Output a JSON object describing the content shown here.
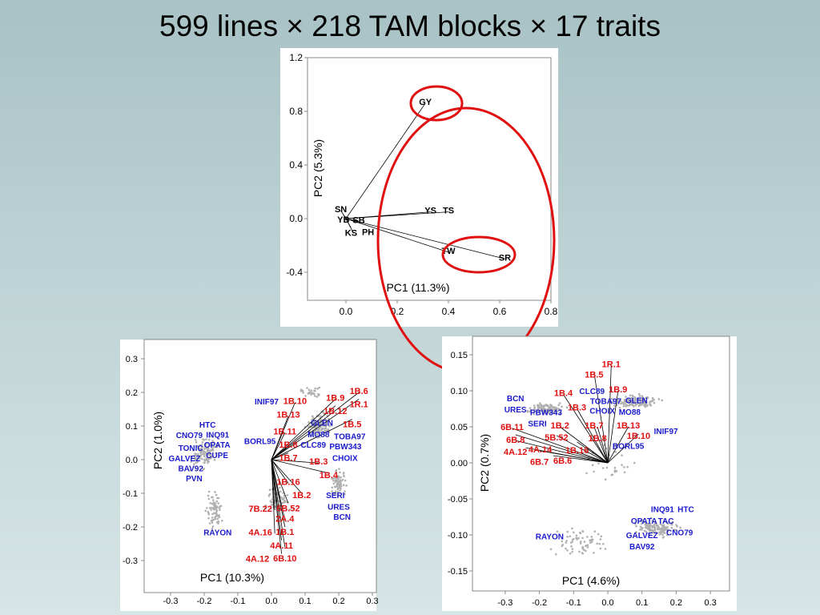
{
  "title": "599 lines × 218 TAM blocks × 17 traits",
  "colors": {
    "trait": "#e01010",
    "cultivar": "#1a1acc",
    "highlight": "#e01010",
    "points": "#b0b0b0",
    "vector": "#000000"
  },
  "chart_data": [
    {
      "type": "scatter",
      "subtype": "biplot",
      "xlabel": "PC1 (11.3%)",
      "ylabel": "PC2 (5.3%)",
      "xlim": [
        -0.15,
        0.8
      ],
      "ylim": [
        -0.5,
        1.2
      ],
      "xticks": [
        "0.0",
        "0.2",
        "0.4",
        "0.6",
        "0.8"
      ],
      "xtick_values": [
        0,
        0.2,
        0.4,
        0.6,
        0.8
      ],
      "yticks": [
        "1.2",
        "0.8",
        "0.4",
        "0.0",
        "-0.4"
      ],
      "ytick_values": [
        1.2,
        0.8,
        0.4,
        0,
        -0.4
      ],
      "traits": [
        {
          "label": "GY",
          "x": 0.31,
          "y": 0.86
        },
        {
          "label": "YS",
          "x": 0.33,
          "y": 0.05
        },
        {
          "label": "TS",
          "x": 0.4,
          "y": 0.05
        },
        {
          "label": "TW",
          "x": 0.4,
          "y": -0.25
        },
        {
          "label": "SR",
          "x": 0.62,
          "y": -0.3
        },
        {
          "label": "SN",
          "x": -0.02,
          "y": 0.06
        },
        {
          "label": "YB",
          "x": -0.01,
          "y": 0.03
        },
        {
          "label": "SB",
          "x": 0.05,
          "y": -0.02
        },
        {
          "label": "KS",
          "x": 0.02,
          "y": -0.07
        },
        {
          "label": "PH",
          "x": 0.03,
          "y": -0.11
        }
      ],
      "highlights": [
        "GY",
        "TW-SR",
        "all-correlated-traits"
      ]
    },
    {
      "type": "scatter",
      "subtype": "biplot",
      "xlabel": "PC1 (10.3%)",
      "ylabel": "PC2 (1.0%)",
      "xlim": [
        -0.37,
        0.33
      ],
      "ylim": [
        -0.39,
        0.34
      ],
      "xticks": [
        "-0.3",
        "-0.2",
        "-0.1",
        "0.0",
        "0.1",
        "0.2",
        "0.3"
      ],
      "xtick_values": [
        -0.3,
        -0.2,
        -0.1,
        0,
        0.1,
        0.2,
        0.3
      ],
      "yticks": [
        "0.3",
        "0.2",
        "0.1",
        "0.0",
        "-0.1",
        "-0.2",
        "-0.3"
      ],
      "ytick_values": [
        0.3,
        0.2,
        0.1,
        0,
        -0.1,
        -0.2,
        -0.3
      ],
      "traits": [
        {
          "label": "1B.6",
          "x": 0.26,
          "y": 0.2
        },
        {
          "label": "1R.1",
          "x": 0.26,
          "y": 0.18
        },
        {
          "label": "1B.9",
          "x": 0.19,
          "y": 0.18
        },
        {
          "label": "1B.12",
          "x": 0.19,
          "y": 0.16
        },
        {
          "label": "1B.10",
          "x": 0.07,
          "y": 0.17
        },
        {
          "label": "1B.13",
          "x": 0.05,
          "y": 0.13
        },
        {
          "label": "1B.5",
          "x": 0.24,
          "y": 0.12
        },
        {
          "label": "1B.11",
          "x": 0.04,
          "y": 0.08
        },
        {
          "label": "1B.8",
          "x": 0.05,
          "y": 0.04
        },
        {
          "label": "1B.7",
          "x": 0.05,
          "y": 0.02
        },
        {
          "label": "1B.3",
          "x": 0.14,
          "y": -0.01
        },
        {
          "label": "1B.4",
          "x": 0.17,
          "y": -0.04
        },
        {
          "label": "1B.16",
          "x": 0.05,
          "y": -0.07
        },
        {
          "label": "1B.2",
          "x": 0.09,
          "y": -0.1
        },
        {
          "label": "6B.52",
          "x": 0.05,
          "y": -0.13
        },
        {
          "label": "7B.22",
          "x": 0.01,
          "y": -0.15
        },
        {
          "label": "2A.4",
          "x": 0.04,
          "y": -0.18
        },
        {
          "label": "1B.1",
          "x": 0.04,
          "y": -0.2
        },
        {
          "label": "4A.16",
          "x": 0.01,
          "y": -0.22
        },
        {
          "label": "4A.11",
          "x": 0.03,
          "y": -0.24
        },
        {
          "label": "6B.10",
          "x": 0.04,
          "y": -0.26
        },
        {
          "label": "4A.12",
          "x": 0.03,
          "y": -0.28
        }
      ],
      "cultivars": [
        {
          "label": "INIF97",
          "x": 0.0,
          "y": 0.16
        },
        {
          "label": "GLEN",
          "x": 0.15,
          "y": 0.125
        },
        {
          "label": "MO88",
          "x": 0.14,
          "y": 0.09
        },
        {
          "label": "BORL95",
          "x": -0.02,
          "y": 0.07
        },
        {
          "label": "TOBA97",
          "x": 0.19,
          "y": 0.075
        },
        {
          "label": "CLC89",
          "x": 0.11,
          "y": 0.06
        },
        {
          "label": "PBW343",
          "x": 0.12,
          "y": 0.045
        },
        {
          "label": "CHOIX",
          "x": 0.19,
          "y": 0.03
        },
        {
          "label": "SERI",
          "x": 0.19,
          "y": -0.11
        },
        {
          "label": "URES",
          "x": 0.2,
          "y": -0.135
        },
        {
          "label": "BCN",
          "x": 0.21,
          "y": -0.145
        },
        {
          "label": "HTC",
          "x": -0.19,
          "y": 0.1
        },
        {
          "label": "INQ91",
          "x": -0.16,
          "y": 0.08
        },
        {
          "label": "CNO79",
          "x": -0.23,
          "y": 0.078
        },
        {
          "label": "TONIC",
          "x": -0.24,
          "y": 0.06
        },
        {
          "label": "OPATA",
          "x": -0.19,
          "y": 0.04
        },
        {
          "label": "CUPE",
          "x": -0.19,
          "y": 0.028
        },
        {
          "label": "GALVEZ",
          "x": -0.23,
          "y": 0.0
        },
        {
          "label": "BAV92",
          "x": -0.24,
          "y": -0.03
        },
        {
          "label": "PVN",
          "x": -0.23,
          "y": -0.04
        },
        {
          "label": "RAYON",
          "x": -0.16,
          "y": -0.22
        }
      ]
    },
    {
      "type": "scatter",
      "subtype": "biplot",
      "xlabel": "PC1 (4.6%)",
      "ylabel": "PC2 (0.7%)",
      "xlim": [
        -0.39,
        0.38
      ],
      "ylim": [
        -0.175,
        0.175
      ],
      "xticks": [
        "-0.3",
        "-0.2",
        "-0.1",
        "0.0",
        "0.1",
        "0.2",
        "0.3"
      ],
      "xtick_values": [
        -0.3,
        -0.2,
        -0.1,
        0,
        0.1,
        0.2,
        0.3
      ],
      "yticks": [
        "0.15",
        "0.10",
        "0.05",
        "0.00",
        "-0.05",
        "-0.10",
        "-0.15"
      ],
      "ytick_values": [
        0.15,
        0.1,
        0.05,
        0,
        -0.05,
        -0.1,
        -0.15
      ],
      "traits": [
        {
          "label": "1R.1",
          "x": 0.01,
          "y": 0.135
        },
        {
          "label": "1B.5",
          "x": -0.04,
          "y": 0.125
        },
        {
          "label": "1B.9",
          "x": 0.03,
          "y": 0.1
        },
        {
          "label": "1B.4",
          "x": -0.13,
          "y": 0.095
        },
        {
          "label": "1B.3",
          "x": -0.09,
          "y": 0.075
        },
        {
          "label": "1B.2",
          "x": -0.14,
          "y": 0.05
        },
        {
          "label": "1B.7",
          "x": -0.04,
          "y": 0.05
        },
        {
          "label": "1B.8",
          "x": -0.03,
          "y": 0.05
        },
        {
          "label": "1B.13",
          "x": 0.06,
          "y": 0.05
        },
        {
          "label": "1B.10",
          "x": 0.09,
          "y": 0.04
        },
        {
          "label": "6B.11",
          "x": -0.28,
          "y": 0.048
        },
        {
          "label": "5B.52",
          "x": -0.15,
          "y": 0.038
        },
        {
          "label": "6B.8",
          "x": -0.27,
          "y": 0.039
        },
        {
          "label": "4A.12",
          "x": -0.27,
          "y": 0.031
        },
        {
          "label": "1B.16",
          "x": -0.09,
          "y": 0.029
        },
        {
          "label": "4A.14",
          "x": -0.24,
          "y": 0.021
        },
        {
          "label": "6B.7",
          "x": -0.2,
          "y": 0.017
        },
        {
          "label": "6B.6",
          "x": -0.16,
          "y": 0.01
        }
      ],
      "cultivars": [
        {
          "label": "TOBA97",
          "x": -0.02,
          "y": 0.093
        },
        {
          "label": "CHOIX",
          "x": -0.03,
          "y": 0.084
        },
        {
          "label": "GLEN",
          "x": 0.07,
          "y": 0.085
        },
        {
          "label": "MO88",
          "x": 0.05,
          "y": 0.078
        },
        {
          "label": "CLC89",
          "x": 0.01,
          "y": 0.071
        },
        {
          "label": "PBW343",
          "x": -0.04,
          "y": 0.064
        },
        {
          "label": "URES",
          "x": -0.27,
          "y": 0.072
        },
        {
          "label": "BCN",
          "x": -0.27,
          "y": 0.07
        },
        {
          "label": "SERI",
          "x": -0.22,
          "y": 0.066
        },
        {
          "label": "INIF97",
          "x": 0.17,
          "y": 0.042
        },
        {
          "label": "BORL95",
          "x": 0.06,
          "y": 0.026
        },
        {
          "label": "INQ91",
          "x": 0.16,
          "y": -0.066
        },
        {
          "label": "HTC",
          "x": 0.2,
          "y": -0.066
        },
        {
          "label": "TAC",
          "x": 0.17,
          "y": -0.078
        },
        {
          "label": "OPATA",
          "x": 0.12,
          "y": -0.082
        },
        {
          "label": "CNO79",
          "x": 0.21,
          "y": -0.094
        },
        {
          "label": "GALVEZ",
          "x": 0.1,
          "y": -0.102
        },
        {
          "label": "BAV92",
          "x": 0.1,
          "y": -0.109
        },
        {
          "label": "RAYON",
          "x": -0.17,
          "y": -0.104
        }
      ]
    }
  ]
}
